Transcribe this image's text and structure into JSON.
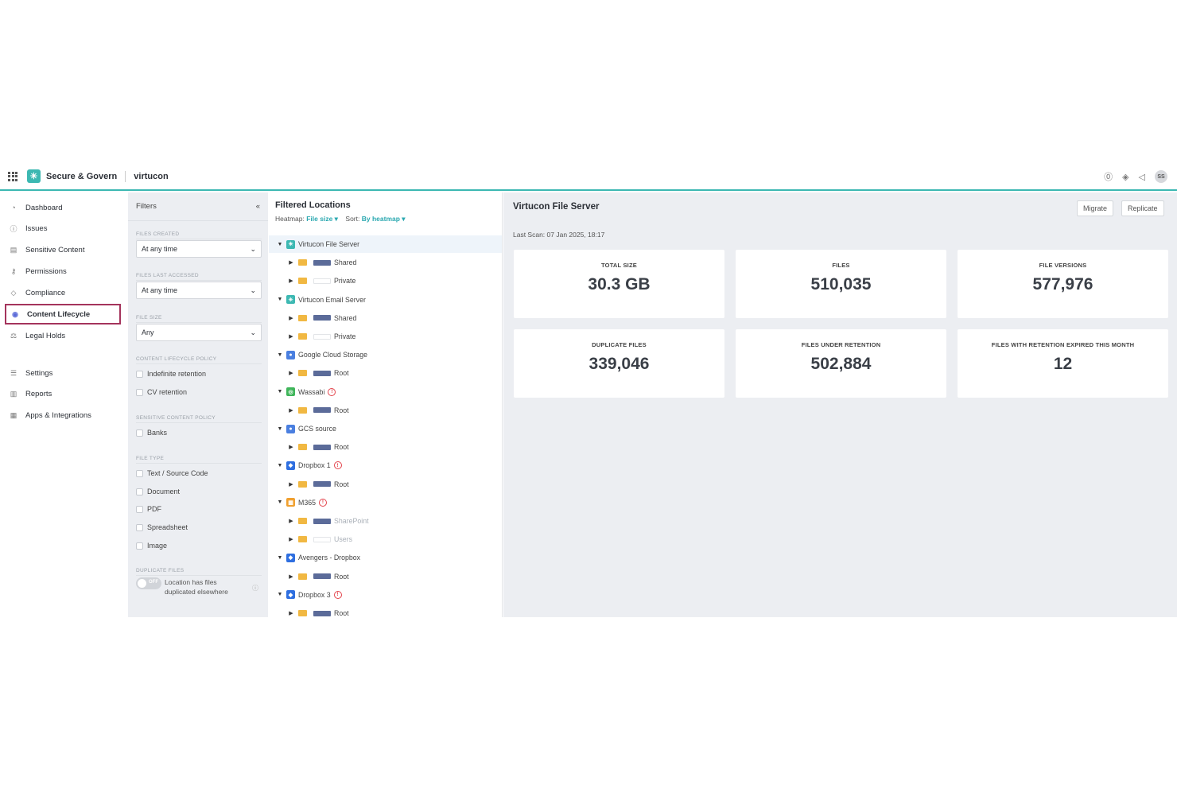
{
  "header": {
    "brand": "Secure & Govern",
    "tenant": "virtucon",
    "avatar": "SS"
  },
  "nav": {
    "items": [
      {
        "label": "Dashboard",
        "icon": "dashboard-icon"
      },
      {
        "label": "Issues",
        "icon": "alert-icon"
      },
      {
        "label": "Sensitive Content",
        "icon": "document-icon"
      },
      {
        "label": "Permissions",
        "icon": "key-icon"
      },
      {
        "label": "Compliance",
        "icon": "shield-icon"
      },
      {
        "label": "Content Lifecycle",
        "icon": "lifecycle-icon"
      },
      {
        "label": "Legal Holds",
        "icon": "gavel-icon"
      },
      {
        "label": "Settings",
        "icon": "sliders-icon"
      },
      {
        "label": "Reports",
        "icon": "report-icon"
      },
      {
        "label": "Apps & Integrations",
        "icon": "apps-icon"
      }
    ],
    "active": "Content Lifecycle"
  },
  "filters": {
    "title": "Filters",
    "collapse": "«",
    "files_created_label": "FILES CREATED",
    "files_created_value": "At any time",
    "files_last_accessed_label": "FILES LAST ACCESSED",
    "files_last_accessed_value": "At any time",
    "file_size_label": "FILE SIZE",
    "file_size_value": "Any",
    "lifecycle_policy_label": "CONTENT LIFECYCLE POLICY",
    "lifecycle_options": [
      "Indefinite retention",
      "CV retention"
    ],
    "sensitive_policy_label": "SENSITIVE CONTENT POLICY",
    "sensitive_options": [
      "Banks"
    ],
    "file_type_label": "FILE TYPE",
    "file_type_options": [
      "Text / Source Code",
      "Document",
      "PDF",
      "Spreadsheet",
      "Image"
    ],
    "duplicate_label": "DUPLICATE FILES",
    "toggle_state": "OFF",
    "toggle_text": "Location has files duplicated elsewhere"
  },
  "locations": {
    "title": "Filtered Locations",
    "heatmap_label": "Heatmap:",
    "heatmap_value": "File size",
    "sort_label": "Sort:",
    "sort_value": "By heatmap",
    "rows": [
      {
        "type": "server",
        "label": "Virtucon File Server",
        "icon": "server-icon",
        "selected": true
      },
      {
        "type": "folder",
        "label": "Shared"
      },
      {
        "type": "folder",
        "label": "Private",
        "light": true
      },
      {
        "type": "server",
        "label": "Virtucon Email Server",
        "icon": "server-icon"
      },
      {
        "type": "folder",
        "label": "Shared"
      },
      {
        "type": "folder",
        "label": "Private",
        "light": true
      },
      {
        "type": "server",
        "label": "Google Cloud Storage",
        "icon": "gcs-icon"
      },
      {
        "type": "folder",
        "label": "Root"
      },
      {
        "type": "server",
        "label": "Wassabi",
        "icon": "wasabi-icon",
        "warn": true
      },
      {
        "type": "folder",
        "label": "Root"
      },
      {
        "type": "server",
        "label": "GCS source",
        "icon": "gcs-icon"
      },
      {
        "type": "folder",
        "label": "Root"
      },
      {
        "type": "server",
        "label": "Dropbox 1",
        "icon": "dropbox-icon",
        "warn": true
      },
      {
        "type": "folder",
        "label": "Root"
      },
      {
        "type": "server",
        "label": "M365",
        "icon": "microsoft-icon",
        "warn": true
      },
      {
        "type": "folder",
        "label": "SharePoint",
        "muted": true
      },
      {
        "type": "folder",
        "label": "Users",
        "muted": true,
        "light": true
      },
      {
        "type": "server",
        "label": "Avengers - Dropbox",
        "icon": "dropbox-icon"
      },
      {
        "type": "folder",
        "label": "Root"
      },
      {
        "type": "server",
        "label": "Dropbox 3",
        "icon": "dropbox-icon",
        "warn": true
      },
      {
        "type": "folder",
        "label": "Root"
      }
    ]
  },
  "main": {
    "title": "Virtucon File Server",
    "migrate": "Migrate",
    "replicate": "Replicate",
    "last_scan": "Last Scan: 07 Jan 2025, 18:17",
    "cards": [
      {
        "label": "TOTAL SIZE",
        "value": "30.3 GB"
      },
      {
        "label": "FILES",
        "value": "510,035"
      },
      {
        "label": "FILE VERSIONS",
        "value": "577,976"
      },
      {
        "label": "DUPLICATE FILES",
        "value": "339,046"
      },
      {
        "label": "FILES UNDER RETENTION",
        "value": "502,884"
      },
      {
        "label": "FILES WITH RETENTION EXPIRED THIS MONTH",
        "value": "12"
      }
    ]
  },
  "colors": {
    "accent": "#3cb8b2",
    "active_border": "#a4345c",
    "link": "#2aa8b0",
    "warn": "#e3434b"
  }
}
